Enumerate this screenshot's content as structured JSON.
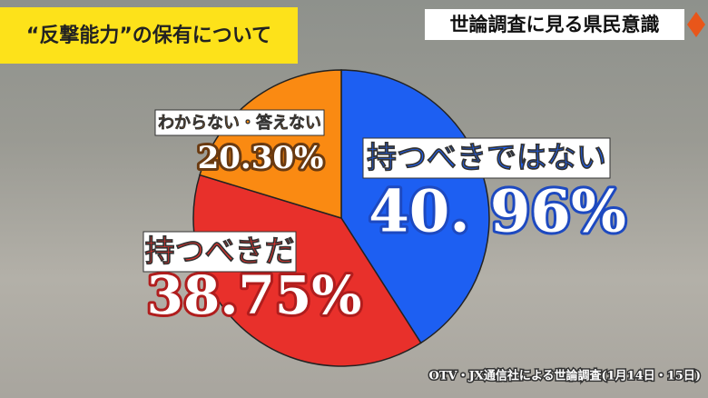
{
  "chart_data": {
    "type": "pie",
    "title": "“反撃能力”の保有について",
    "subtitle": "世論調査に見る県民意識",
    "source": "OTV・JX通信社による世論調査(1月14日・15日)",
    "categories": [
      "持つべきではない",
      "持つべきだ",
      "わからない・答えない"
    ],
    "values": [
      40.96,
      38.75,
      20.3
    ],
    "value_labels": [
      "40. 96%",
      "38.75%",
      "20.30%"
    ],
    "colors": [
      "#1d5ff2",
      "#e8302b",
      "#fa8a12"
    ]
  }
}
